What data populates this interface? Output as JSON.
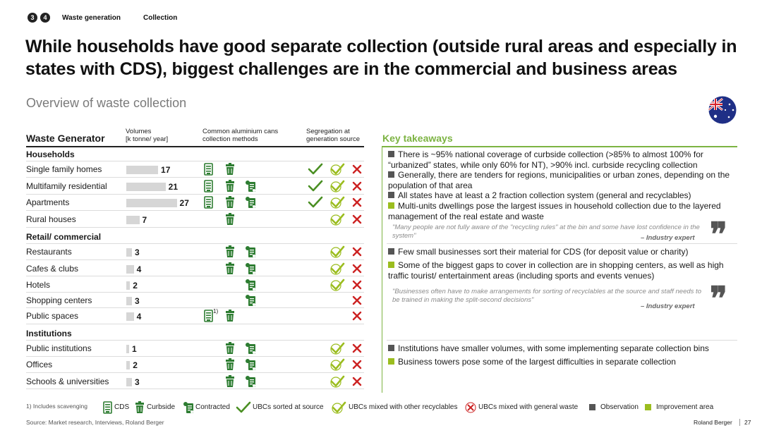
{
  "breadcrumb": {
    "num1": "3",
    "num2": "4",
    "item1": "Waste generation",
    "item2": "Collection"
  },
  "title": "While households have good separate collection (outside rural areas and especially in states with CDS), biggest challenges are in the commercial and business areas",
  "subtitle": "Overview of waste collection",
  "table": {
    "col_generator": "Waste Generator",
    "col_volumes_1": "Volumes",
    "col_volumes_2": "[k tonne/ year]",
    "col_methods_1": "Common aluminium cans",
    "col_methods_2": "collection methods",
    "col_seg_1": "Segregation at",
    "col_seg_2": "generation source",
    "sections": [
      {
        "name": "Households"
      },
      {
        "name": "Retail/ commercial"
      },
      {
        "name": "Institutions"
      }
    ],
    "rows": [
      {
        "label": "Single family homes",
        "value": "17"
      },
      {
        "label": "Multifamily residential",
        "value": "21"
      },
      {
        "label": "Apartments",
        "value": "27"
      },
      {
        "label": "Rural houses",
        "value": "7"
      },
      {
        "label": "Restaurants",
        "value": "3"
      },
      {
        "label": "Cafes & clubs",
        "value": "4"
      },
      {
        "label": "Hotels",
        "value": "2"
      },
      {
        "label": "Shopping centers",
        "value": "3"
      },
      {
        "label": "Public spaces",
        "value": "4"
      },
      {
        "label": "Public institutions",
        "value": "1"
      },
      {
        "label": "Offices",
        "value": "2"
      },
      {
        "label": "Schools & universities",
        "value": "3"
      }
    ],
    "footnote_marker": "1)"
  },
  "takeaways": {
    "title": "Key takeaways",
    "b1": "There is ~95% national coverage of curbside collection (>85% to almost 100% for “urbanized” states, while only 60% for NT), >90% incl. curbside recycling collection",
    "b2": "Generally, there are tenders for regions, municipalities or urban zones, depending on the population of that area",
    "b3": "All states have at least a 2 fraction collection system (general and recyclables)",
    "b4": "Multi-units dwellings pose the largest issues in household collection due to the layered management of the real estate and waste",
    "q1": "\"Many people are not fully aware of the \"recycling rules\" at the bin and some have lost confidence in the system\"",
    "q1_author": "– Industry expert",
    "b5": "Few small businesses sort their material for CDS (for deposit value or charity)",
    "b6": "Some of the biggest gaps to cover in collection are in shopping centers, as well as high traffic tourist/ entertainment areas (including sports and events venues)",
    "q2": "\"Businesses often have to make arrangements for sorting of recyclables at the source and staff needs to be trained in making the split-second decisions\"",
    "q2_author": "– Industry expert",
    "b7": "Institutions have smaller volumes, with some implementing separate collection bins",
    "b8": "Business towers pose some of the largest difficulties in separate collection",
    "quote_mark": "❞"
  },
  "legend": {
    "footnote": "1) Includes scavenging",
    "cds": "CDS",
    "curbside": "Curbside",
    "contracted": "Contracted",
    "ubc_sorted": "UBCs sorted at source",
    "ubc_mixed_recyc": "UBCs mixed with other recyclables",
    "ubc_mixed_general": "UBCs mixed with general waste",
    "observation": "Observation",
    "improvement": "Improvement area"
  },
  "footer": {
    "source": "Source: Market research, Interviews, Roland Berger",
    "brand": "Roland Berger",
    "page": "27"
  },
  "colors": {
    "green": "#7cb342",
    "olive": "#9bbd1f",
    "red": "#cc2222",
    "gray_bar": "#d6d6d6"
  }
}
